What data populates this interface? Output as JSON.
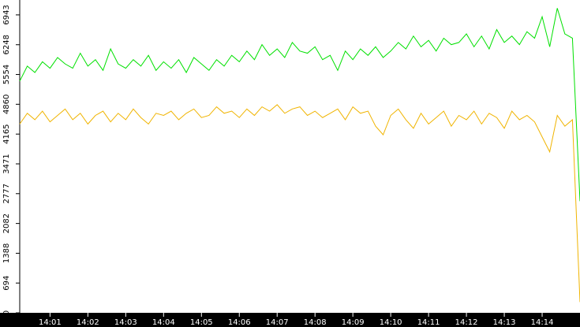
{
  "chart_data": {
    "type": "line",
    "x": [
      0.2,
      0.4,
      0.6,
      0.8,
      1.0,
      1.2,
      1.4,
      1.6,
      1.8,
      2.0,
      2.2,
      2.4,
      2.6,
      2.8,
      3.0,
      3.2,
      3.4,
      3.6,
      3.8,
      4.0,
      4.2,
      4.4,
      4.6,
      4.8,
      5.0,
      5.2,
      5.4,
      5.6,
      5.8,
      6.0,
      6.2,
      6.4,
      6.6,
      6.8,
      7.0,
      7.2,
      7.4,
      7.6,
      7.8,
      8.0,
      8.2,
      8.4,
      8.6,
      8.8,
      9.0,
      9.2,
      9.4,
      9.6,
      9.8,
      10.0,
      10.2,
      10.4,
      10.6,
      10.8,
      11.0,
      11.2,
      11.4,
      11.6,
      11.8,
      12.0,
      12.2,
      12.4,
      12.6,
      12.8,
      13.0,
      13.2,
      13.4,
      13.6,
      13.8,
      14.0,
      14.2,
      14.4,
      14.6,
      14.8,
      15.0
    ],
    "series": [
      {
        "color": "#00e000",
        "values": [
          5400,
          5750,
          5600,
          5850,
          5700,
          5950,
          5800,
          5700,
          6050,
          5750,
          5900,
          5650,
          6150,
          5800,
          5700,
          5900,
          5750,
          6000,
          5650,
          5850,
          5700,
          5900,
          5600,
          5950,
          5800,
          5650,
          5900,
          5750,
          6000,
          5850,
          6100,
          5900,
          6250,
          6000,
          6150,
          5950,
          6300,
          6100,
          6050,
          6200,
          5900,
          6000,
          5650,
          6100,
          5900,
          6150,
          6000,
          6200,
          5950,
          6100,
          6300,
          6150,
          6450,
          6200,
          6350,
          6100,
          6400,
          6250,
          6300,
          6500,
          6200,
          6450,
          6150,
          6600,
          6300,
          6450,
          6250,
          6550,
          6400,
          6900,
          6200,
          7100,
          6500,
          6400,
          2600
        ]
      },
      {
        "color": "#f0b400",
        "values": [
          4400,
          4650,
          4500,
          4700,
          4450,
          4600,
          4750,
          4500,
          4650,
          4400,
          4600,
          4700,
          4450,
          4650,
          4500,
          4750,
          4550,
          4400,
          4650,
          4600,
          4700,
          4500,
          4650,
          4750,
          4550,
          4600,
          4800,
          4650,
          4700,
          4550,
          4750,
          4600,
          4800,
          4700,
          4850,
          4650,
          4750,
          4800,
          4600,
          4700,
          4550,
          4650,
          4750,
          4500,
          4800,
          4650,
          4700,
          4350,
          4150,
          4600,
          4750,
          4500,
          4300,
          4650,
          4400,
          4550,
          4700,
          4350,
          4600,
          4500,
          4700,
          4400,
          4650,
          4550,
          4300,
          4700,
          4500,
          4600,
          4450,
          4100,
          3750,
          4600,
          4350,
          4500,
          250
        ]
      }
    ],
    "xlim": [
      0.2,
      15.0
    ],
    "xticks": [
      {
        "value": 1,
        "label": "14:01"
      },
      {
        "value": 2,
        "label": "14:02"
      },
      {
        "value": 3,
        "label": "14:03"
      },
      {
        "value": 4,
        "label": "14:04"
      },
      {
        "value": 5,
        "label": "14:05"
      },
      {
        "value": 6,
        "label": "14:06"
      },
      {
        "value": 7,
        "label": "14:07"
      },
      {
        "value": 8,
        "label": "14:08"
      },
      {
        "value": 9,
        "label": "14:09"
      },
      {
        "value": 10,
        "label": "14:10"
      },
      {
        "value": 11,
        "label": "14:11"
      },
      {
        "value": 12,
        "label": "14:12"
      },
      {
        "value": 13,
        "label": "14:13"
      },
      {
        "value": 14,
        "label": "14:14"
      }
    ],
    "ylim": [
      0,
      7290
    ],
    "yticks": [
      0,
      694,
      1388,
      2082,
      2777,
      3471,
      4165,
      4860,
      5554,
      6248,
      6943
    ]
  }
}
